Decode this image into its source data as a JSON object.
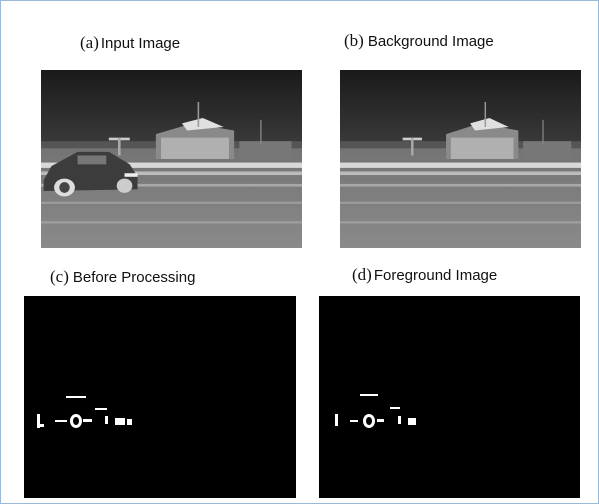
{
  "panels": [
    {
      "letter": "(a)",
      "caption": "Input Image"
    },
    {
      "letter": "(b)",
      "caption": "Background Image"
    },
    {
      "letter": "(c)",
      "caption": "Before Processing"
    },
    {
      "letter": "(d)",
      "caption": "Foreground Image"
    }
  ]
}
